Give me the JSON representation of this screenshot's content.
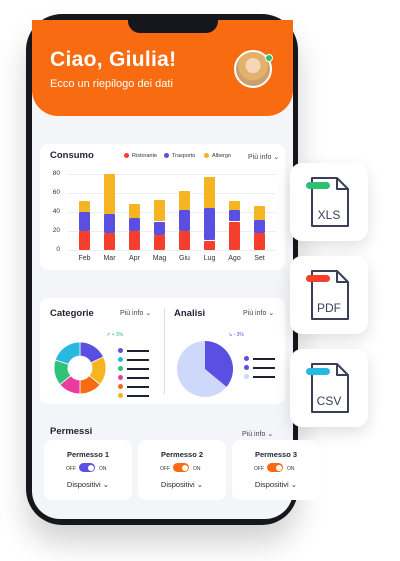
{
  "header": {
    "greeting": "Ciao, Giulia!",
    "subtitle": "Ecco un riepilogo dei dati"
  },
  "consumo": {
    "title": "Consumo",
    "more": "Più info",
    "more_icon": "chevron-down-icon"
  },
  "chart_data": {
    "type": "bar",
    "stacked": true,
    "categories": [
      "Feb",
      "Mar",
      "Apr",
      "Mag",
      "Giu",
      "Lug",
      "Ago",
      "Set"
    ],
    "series": [
      {
        "name": "Ristorante",
        "color": "#f53f2c",
        "values": [
          20,
          18,
          20,
          16,
          20,
          10,
          30,
          18
        ]
      },
      {
        "name": "Trasporto",
        "color": "#5a4fe0",
        "values": [
          20,
          20,
          14,
          14,
          22,
          34,
          12,
          14
        ]
      },
      {
        "name": "Albergo",
        "color": "#f5b422",
        "values": [
          12,
          42,
          14,
          23,
          20,
          33,
          10,
          14
        ]
      }
    ],
    "yticks": [
      "0",
      "20",
      "40",
      "60",
      "80"
    ],
    "ylim": [
      0,
      80
    ],
    "grid": true,
    "legend_position": "top-right"
  },
  "categorie": {
    "title": "Categorie",
    "more": "Più info",
    "trend": "↗ + 3%",
    "donut_colors": [
      "#5a4fe0",
      "#f5b422",
      "#f96b10",
      "#ec3ba0",
      "#2fc37a",
      "#28b8e0"
    ],
    "donut_fractions": [
      0.18,
      0.18,
      0.14,
      0.14,
      0.16,
      0.2
    ]
  },
  "analisi": {
    "title": "Analisi",
    "more": "Più info",
    "trend": "↘ - 3%",
    "pie_colors": [
      "#5a4fe0",
      "#cdd8fb"
    ],
    "pie_fraction": 0.36
  },
  "permessi": {
    "title": "Permessi",
    "more": "Più info",
    "items": [
      {
        "name": "Permesso 1",
        "off": "OFF",
        "on": "ON",
        "toggle_color": "#5a4fe0",
        "state": "on",
        "devices": "Dispositivi"
      },
      {
        "name": "Permesso 2",
        "off": "OFF",
        "on": "ON",
        "toggle_color": "#f96b10",
        "state": "on",
        "devices": "Dispositivi"
      },
      {
        "name": "Permesso 3",
        "off": "OFF",
        "on": "ON",
        "toggle_color": "#f96b10",
        "state": "on",
        "devices": "Dispositivi"
      }
    ]
  },
  "files": [
    {
      "label": "XLS",
      "tab_color": "#2fbf71",
      "icon": "xls-file-icon"
    },
    {
      "label": "PDF",
      "tab_color": "#f53f2c",
      "icon": "pdf-file-icon"
    },
    {
      "label": "CSV",
      "tab_color": "#28b8e0",
      "icon": "csv-file-icon"
    }
  ]
}
